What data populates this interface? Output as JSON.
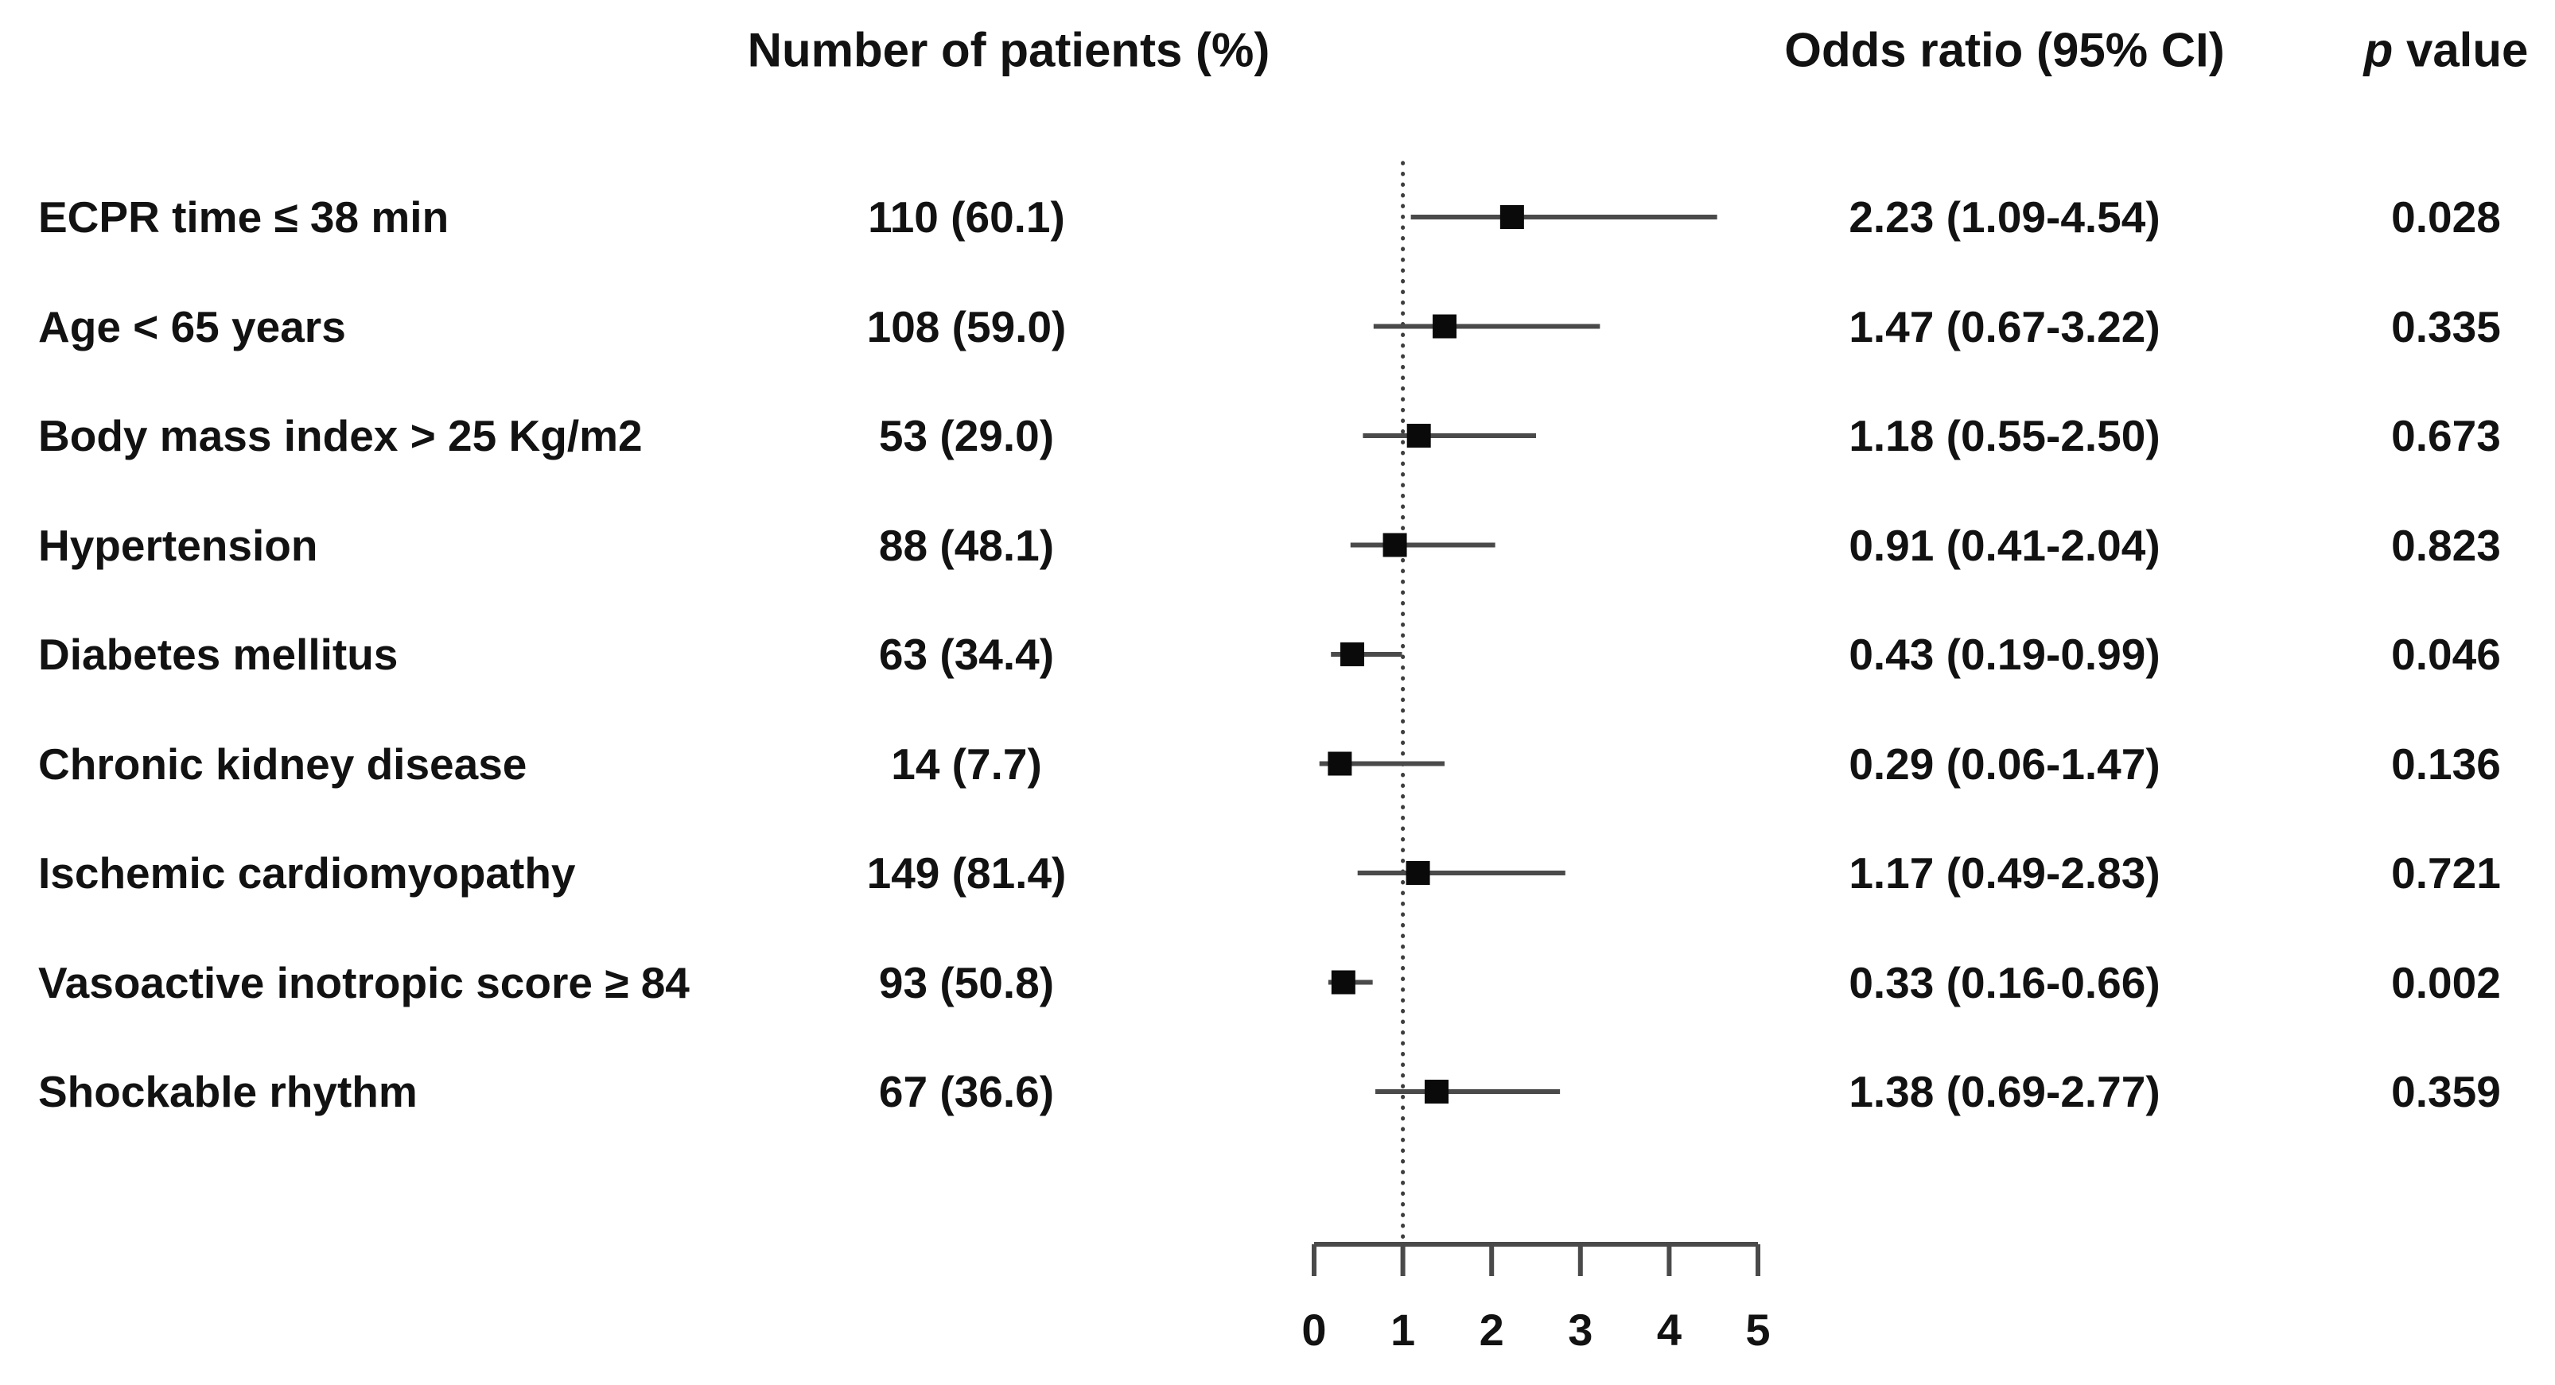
{
  "header": {
    "patients": "Number of patients (%)",
    "odds_ratio": "Odds ratio (95% CI)",
    "p_italic": "p",
    "p_rest": " value"
  },
  "chart_data": {
    "type": "forest",
    "title": "",
    "xlabel": "",
    "xlim": [
      0,
      5
    ],
    "x_ticks": [
      "0",
      "1",
      "2",
      "3",
      "4",
      "5"
    ],
    "reference_line_x": 1,
    "grid": false,
    "rows": [
      {
        "label": "ECPR time ≤ 38 min",
        "patients": "110 (60.1)",
        "or": 2.23,
        "ci_low": 1.09,
        "ci_high": 4.54,
        "or_text": "2.23 (1.09-4.54)",
        "p": "0.028"
      },
      {
        "label": "Age < 65 years",
        "patients": "108 (59.0)",
        "or": 1.47,
        "ci_low": 0.67,
        "ci_high": 3.22,
        "or_text": "1.47 (0.67-3.22)",
        "p": "0.335"
      },
      {
        "label": "Body mass index > 25 Kg/m2",
        "patients": "53 (29.0)",
        "or": 1.18,
        "ci_low": 0.55,
        "ci_high": 2.5,
        "or_text": "1.18 (0.55-2.50)",
        "p": "0.673"
      },
      {
        "label": "Hypertension",
        "patients": "88 (48.1)",
        "or": 0.91,
        "ci_low": 0.41,
        "ci_high": 2.04,
        "or_text": "0.91 (0.41-2.04)",
        "p": "0.823"
      },
      {
        "label": "Diabetes mellitus",
        "patients": "63 (34.4)",
        "or": 0.43,
        "ci_low": 0.19,
        "ci_high": 0.99,
        "or_text": "0.43 (0.19-0.99)",
        "p": "0.046"
      },
      {
        "label": "Chronic kidney disease",
        "patients": "14 (7.7)",
        "or": 0.29,
        "ci_low": 0.06,
        "ci_high": 1.47,
        "or_text": "0.29 (0.06-1.47)",
        "p": "0.136"
      },
      {
        "label": "Ischemic cardiomyopathy",
        "patients": "149 (81.4)",
        "or": 1.17,
        "ci_low": 0.49,
        "ci_high": 2.83,
        "or_text": "1.17 (0.49-2.83)",
        "p": "0.721"
      },
      {
        "label": "Vasoactive inotropic score ≥ 84",
        "patients": "93 (50.8)",
        "or": 0.33,
        "ci_low": 0.16,
        "ci_high": 0.66,
        "or_text": "0.33 (0.16-0.66)",
        "p": "0.002"
      },
      {
        "label": "Shockable rhythm",
        "patients": "67 (36.6)",
        "or": 1.38,
        "ci_low": 0.69,
        "ci_high": 2.77,
        "or_text": "1.38 (0.69-2.77)",
        "p": "0.359"
      }
    ]
  },
  "colors": {
    "background": "#ffffff",
    "text": "#121212",
    "marker": "#0a0a0a",
    "line": "#4a4a4a"
  }
}
